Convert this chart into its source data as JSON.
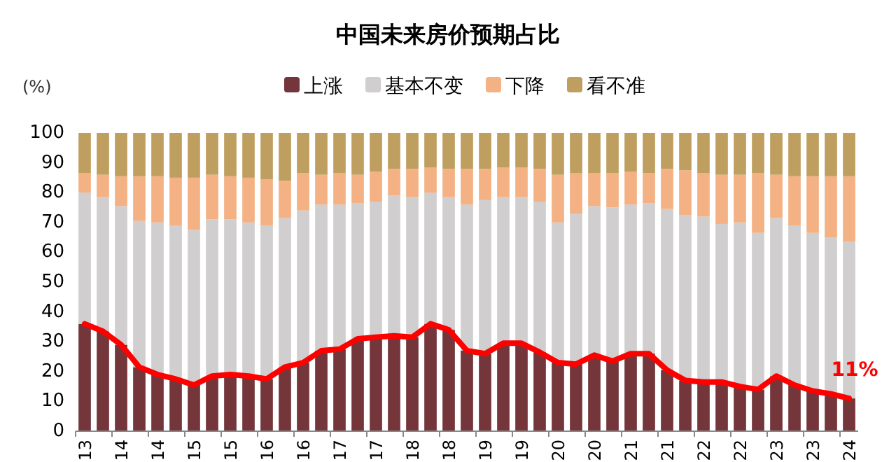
{
  "chart_data": {
    "type": "bar",
    "title": "中国未来房价预期占比",
    "ylabel": "(%)",
    "stacked": true,
    "legend": "top",
    "ylim": [
      0,
      100
    ],
    "yticks": [
      0,
      10,
      20,
      30,
      40,
      50,
      60,
      70,
      80,
      90,
      100
    ],
    "categories": [
      "13",
      null,
      "14",
      null,
      "14",
      null,
      "15",
      null,
      "15",
      null,
      "16",
      null,
      "16",
      null,
      "17",
      null,
      "17",
      null,
      "18",
      null,
      "18",
      null,
      "19",
      null,
      "19",
      null,
      "20",
      null,
      "20",
      null,
      "21",
      null,
      "21",
      null,
      "22",
      null,
      "22",
      null,
      "23",
      null,
      "23",
      null,
      "24"
    ],
    "series": [
      {
        "name": "上涨",
        "color": "#74363a",
        "values": [
          36,
          33.5,
          29,
          21.5,
          19,
          17.5,
          15.5,
          18.5,
          19,
          18.5,
          17.5,
          21.5,
          23,
          27,
          27.5,
          31,
          31.5,
          32,
          31.5,
          36,
          34,
          27,
          26,
          29.5,
          29.5,
          26.5,
          23,
          22.5,
          25.5,
          23.5,
          26,
          26,
          20.5,
          17,
          16.5,
          16.5,
          15,
          14,
          18.5,
          15.5,
          13.5,
          12.5,
          11
        ]
      },
      {
        "name": "基本不变",
        "color": "#d0cece",
        "values": [
          44,
          45,
          46.5,
          49,
          51,
          51.5,
          52,
          52.5,
          52,
          51.5,
          51.5,
          50,
          51,
          49,
          48.5,
          45.5,
          45.5,
          47,
          47,
          44,
          44.5,
          49,
          51.5,
          49,
          49,
          50.5,
          47,
          50.5,
          50,
          51.5,
          50,
          50.5,
          54,
          55.5,
          55.5,
          53,
          55,
          52.5,
          53,
          53.5,
          53,
          52.5,
          52.5
        ]
      },
      {
        "name": "下降",
        "color": "#f4b183",
        "values": [
          6.5,
          7.5,
          10,
          15,
          15.5,
          16,
          17.5,
          15,
          14.5,
          15,
          15.5,
          12.5,
          12.5,
          10,
          10.5,
          9.5,
          10,
          9,
          9.5,
          8.5,
          9.5,
          12,
          10.5,
          10,
          10,
          11,
          16,
          13.5,
          11,
          11.5,
          11,
          10,
          13.5,
          15,
          14.5,
          16.5,
          16,
          20,
          14.5,
          16.5,
          19,
          20.5,
          22
        ]
      },
      {
        "name": "看不准",
        "color": "#bf9f5f",
        "values": [
          13.5,
          14,
          14.5,
          14.5,
          14.5,
          15,
          15,
          14,
          14.5,
          15,
          15.5,
          16,
          13.5,
          14,
          13.5,
          14,
          13,
          12,
          12,
          11.5,
          12,
          12,
          12,
          11.5,
          11.5,
          12,
          14,
          13.5,
          13.5,
          13.5,
          13,
          13.5,
          12,
          12.5,
          13.5,
          14,
          14,
          13.5,
          14,
          14.5,
          14.5,
          14.5,
          14.5
        ]
      },
      {
        "type": "line",
        "color": "#ff0000",
        "values": [
          36,
          33.5,
          29,
          21.5,
          19,
          17.5,
          15.5,
          18.5,
          19,
          18.5,
          17.5,
          21.5,
          23,
          27,
          27.5,
          31,
          31.5,
          32,
          31.5,
          36,
          34,
          27,
          26,
          29.5,
          29.5,
          26.5,
          23,
          22.5,
          25.5,
          23.5,
          26,
          26,
          20.5,
          17,
          16.5,
          16.5,
          15,
          14,
          18.5,
          15.5,
          13.5,
          12.5,
          11
        ]
      }
    ],
    "annotations": [
      {
        "text": "11%",
        "x": "24",
        "y": 11
      }
    ]
  }
}
